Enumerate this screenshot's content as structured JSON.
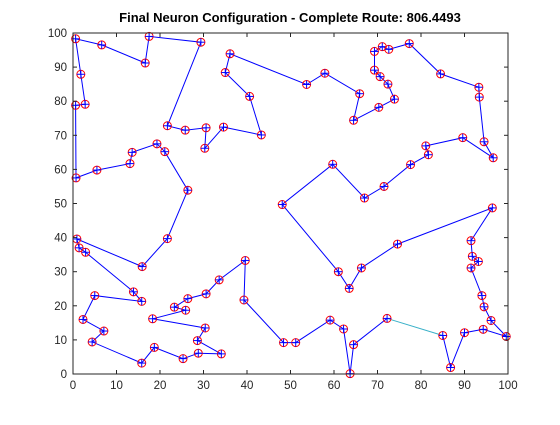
{
  "chart_data": {
    "type": "scatter",
    "title": "Final Neuron Configuration - Complete Route: 806.4493",
    "xlabel": "",
    "ylabel": "",
    "xlim": [
      0,
      100
    ],
    "ylim": [
      0,
      100
    ],
    "x_ticks": [
      "0",
      "10",
      "20",
      "30",
      "40",
      "50",
      "60",
      "70",
      "80",
      "90",
      "100"
    ],
    "y_ticks": [
      "0",
      "10",
      "20",
      "30",
      "40",
      "50",
      "60",
      "70",
      "80",
      "90",
      "100"
    ],
    "grid": false,
    "colors": {
      "route_line": "#0000ff",
      "closing_segment": "#38b0c8",
      "city_marker": "#ff0000",
      "neuron_marker": "#0000ff"
    },
    "route": [
      [
        72.2,
        16.3
      ],
      [
        64.5,
        8.6
      ],
      [
        63.7,
        0.1
      ],
      [
        62.2,
        13.2
      ],
      [
        59.1,
        15.8
      ],
      [
        51.2,
        9.2
      ],
      [
        48.4,
        9.2
      ],
      [
        39.3,
        21.7
      ],
      [
        39.6,
        33.3
      ],
      [
        33.6,
        27.6
      ],
      [
        30.6,
        23.5
      ],
      [
        26.4,
        22.1
      ],
      [
        23.3,
        19.6
      ],
      [
        25.9,
        18.7
      ],
      [
        18.3,
        16.2
      ],
      [
        30.4,
        13.5
      ],
      [
        28.6,
        9.8
      ],
      [
        34.1,
        5.9
      ],
      [
        28.8,
        6.1
      ],
      [
        25.3,
        4.5
      ],
      [
        18.7,
        7.8
      ],
      [
        15.8,
        3.2
      ],
      [
        4.4,
        9.4
      ],
      [
        7.1,
        12.6
      ],
      [
        2.3,
        16.0
      ],
      [
        5.0,
        23.0
      ],
      [
        15.8,
        21.3
      ],
      [
        13.9,
        24.1
      ],
      [
        2.9,
        35.7
      ],
      [
        1.4,
        37.0
      ],
      [
        0.9,
        39.6
      ],
      [
        15.9,
        31.5
      ],
      [
        21.7,
        39.7
      ],
      [
        26.4,
        53.9
      ],
      [
        21.1,
        65.2
      ],
      [
        19.3,
        67.5
      ],
      [
        13.6,
        65.0
      ],
      [
        13.1,
        61.7
      ],
      [
        5.5,
        59.8
      ],
      [
        0.7,
        57.5
      ],
      [
        0.6,
        78.8
      ],
      [
        2.8,
        79.1
      ],
      [
        1.8,
        87.9
      ],
      [
        0.6,
        98.3
      ],
      [
        6.6,
        96.5
      ],
      [
        16.6,
        91.2
      ],
      [
        17.5,
        99.0
      ],
      [
        29.4,
        97.3
      ],
      [
        21.7,
        72.8
      ],
      [
        25.8,
        71.5
      ],
      [
        30.6,
        72.2
      ],
      [
        30.3,
        66.2
      ],
      [
        34.6,
        72.4
      ],
      [
        43.3,
        70.1
      ],
      [
        40.6,
        81.4
      ],
      [
        35.0,
        88.4
      ],
      [
        36.1,
        93.9
      ],
      [
        53.7,
        84.9
      ],
      [
        57.9,
        88.2
      ],
      [
        65.9,
        82.2
      ],
      [
        64.5,
        74.4
      ],
      [
        70.3,
        78.2
      ],
      [
        73.9,
        80.6
      ],
      [
        72.4,
        85.0
      ],
      [
        70.6,
        87.2
      ],
      [
        69.3,
        89.1
      ],
      [
        69.3,
        94.6
      ],
      [
        71.1,
        96.0
      ],
      [
        72.6,
        95.2
      ],
      [
        77.3,
        96.9
      ],
      [
        84.5,
        88.0
      ],
      [
        93.3,
        84.1
      ],
      [
        93.4,
        81.2
      ],
      [
        94.5,
        68.1
      ],
      [
        96.6,
        63.4
      ],
      [
        89.6,
        69.3
      ],
      [
        81.1,
        66.9
      ],
      [
        81.7,
        64.3
      ],
      [
        77.6,
        61.4
      ],
      [
        71.5,
        55.0
      ],
      [
        67.0,
        51.6
      ],
      [
        59.7,
        61.5
      ],
      [
        48.1,
        49.7
      ],
      [
        61.0,
        30.0
      ],
      [
        63.5,
        25.1
      ],
      [
        66.3,
        31.1
      ],
      [
        74.6,
        38.1
      ],
      [
        96.4,
        48.7
      ],
      [
        91.5,
        39.1
      ],
      [
        91.8,
        34.5
      ],
      [
        93.2,
        33.0
      ],
      [
        91.5,
        31.1
      ],
      [
        94.0,
        23.0
      ],
      [
        94.5,
        19.7
      ],
      [
        96.1,
        15.7
      ],
      [
        99.6,
        11.0
      ],
      [
        94.3,
        13.1
      ],
      [
        90.0,
        12.1
      ],
      [
        86.8,
        1.9
      ],
      [
        85.0,
        11.3
      ]
    ]
  }
}
